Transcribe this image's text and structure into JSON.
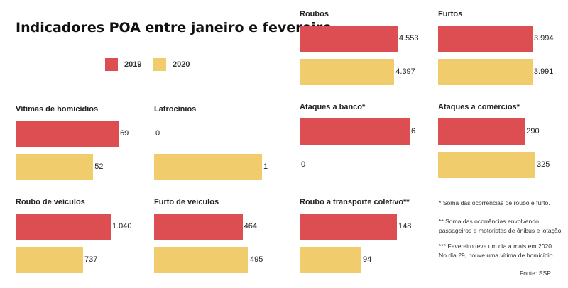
{
  "title": "Indicadores POA entre janeiro e fevereiro",
  "colors": {
    "2019": "#dd4e53",
    "2020": "#f0cc6c"
  },
  "legend": [
    {
      "label": "2019",
      "color": "#dd4e53"
    },
    {
      "label": "2020",
      "color": "#f0cc6c"
    }
  ],
  "chart_data": [
    {
      "type": "bar",
      "title": "Vítimas de homicídios",
      "categories": [
        "2019",
        "2020"
      ],
      "values": [
        69,
        52
      ],
      "labels": [
        "69",
        "52"
      ]
    },
    {
      "type": "bar",
      "title": "Latrocínios",
      "categories": [
        "2019",
        "2020"
      ],
      "values": [
        0,
        1
      ],
      "labels": [
        "0",
        "1"
      ]
    },
    {
      "type": "bar",
      "title": "Roubos",
      "categories": [
        "2019",
        "2020"
      ],
      "values": [
        4553,
        4397
      ],
      "labels": [
        "4.553",
        "4.397"
      ]
    },
    {
      "type": "bar",
      "title": "Furtos",
      "categories": [
        "2019",
        "2020"
      ],
      "values": [
        3994,
        3991
      ],
      "labels": [
        "3.994",
        "3.991"
      ]
    },
    {
      "type": "bar",
      "title": "Ataques a banco*",
      "categories": [
        "2019",
        "2020"
      ],
      "values": [
        6,
        0
      ],
      "labels": [
        "6",
        "0"
      ]
    },
    {
      "type": "bar",
      "title": "Ataques a comércios*",
      "categories": [
        "2019",
        "2020"
      ],
      "values": [
        290,
        325
      ],
      "labels": [
        "290",
        "325"
      ]
    },
    {
      "type": "bar",
      "title": "Roubo de veículos",
      "categories": [
        "2019",
        "2020"
      ],
      "values": [
        1040,
        737
      ],
      "labels": [
        "1.040",
        "737"
      ]
    },
    {
      "type": "bar",
      "title": "Furto de veículos",
      "categories": [
        "2019",
        "2020"
      ],
      "values": [
        464,
        495
      ],
      "labels": [
        "464",
        "495"
      ]
    },
    {
      "type": "bar",
      "title": "Roubo a transporte coletivo**",
      "categories": [
        "2019",
        "2020"
      ],
      "values": [
        148,
        94
      ],
      "labels": [
        "148",
        "94"
      ]
    }
  ],
  "notes": [
    [
      "* Soma das ocorrências de roubo e furto."
    ],
    [
      "** Soma das ocorrências envolvendo",
      "passageiros e motoristas de ônibus e lotação."
    ],
    [
      "*** Fevereiro teve um dia a mais em 2020.",
      "No dia 29, houve uma vítima de homicídio."
    ]
  ],
  "source": "Fonte: SSP"
}
